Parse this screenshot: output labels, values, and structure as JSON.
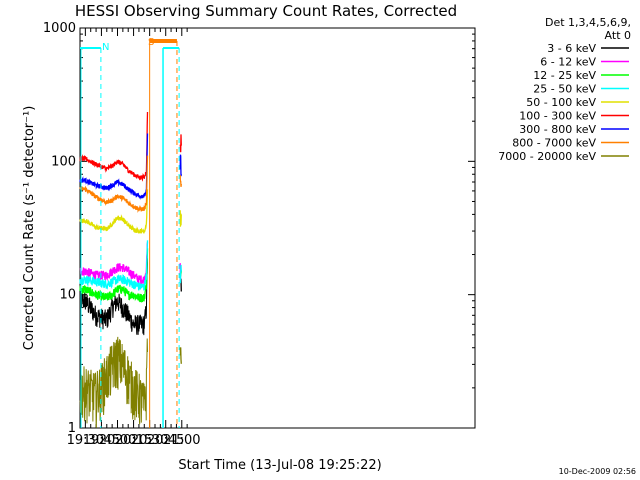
{
  "colors": {
    "axis": "#000000",
    "s_3_6": "#000000",
    "s_6_12": "#ff00ff",
    "s_12_25": "#00ff00",
    "s_25_50": "#00ffff",
    "s_50_100": "#e0e000",
    "s_100_300": "#ff0000",
    "s_300_800": "#0000ff",
    "s_800_7000": "#ff8000",
    "s_7000_20000": "#808000",
    "mark_n": "#00ffff",
    "mark_s": "#ff8000"
  },
  "chart_data": {
    "type": "line",
    "title": "HESSI Observing Summary Count Rates, Corrected",
    "xlabel": "Start Time (13-Jul-08 19:25:22)",
    "ylabel": "Corrected Count Rate (s⁻¹ detector⁻¹)",
    "y_scale": "log",
    "ylim": [
      1,
      1000
    ],
    "xlim_minutes_after_1925": [
      0,
      40
    ],
    "x_ticks": [
      "19:30",
      "19:45",
      "20:00",
      "20:15",
      "20:30",
      "20:45",
      "21:00"
    ],
    "x_tick_minutes": [
      5,
      20,
      35,
      50,
      65,
      80,
      95
    ],
    "y_ticks": [
      "1",
      "10",
      "100",
      "1000"
    ],
    "legend_header": [
      "Det 1,3,4,5,6,9,",
      "Att 0"
    ],
    "legend_position": "right",
    "x_minutes": [
      5,
      15,
      25,
      30,
      35,
      40,
      45,
      50,
      55,
      60,
      62,
      63
    ],
    "series": [
      {
        "name": "3 - 6 keV",
        "color_key": "s_3_6",
        "values": [
          9,
          7,
          6.5,
          8,
          9,
          8,
          7,
          6,
          6,
          6,
          8,
          20
        ]
      },
      {
        "name": "6 - 12 keV",
        "color_key": "s_6_12",
        "values": [
          15,
          14,
          14,
          15,
          16,
          16,
          15,
          14,
          13,
          13,
          16,
          25
        ]
      },
      {
        "name": "12 - 25 keV",
        "color_key": "s_12_25",
        "values": [
          11,
          10,
          9.5,
          10,
          11,
          11,
          10,
          10,
          9.5,
          9.5,
          12,
          22
        ]
      },
      {
        "name": "25 - 50 keV",
        "color_key": "s_25_50",
        "values": [
          13,
          12.5,
          12,
          12.5,
          13,
          13,
          12.5,
          12,
          11.5,
          11.5,
          14,
          24
        ]
      },
      {
        "name": "50 - 100 keV",
        "color_key": "s_50_100",
        "values": [
          36,
          32,
          31,
          34,
          38,
          37,
          33,
          31,
          30,
          30,
          34,
          60
        ]
      },
      {
        "name": "100 - 300 keV",
        "color_key": "s_100_300",
        "values": [
          105,
          95,
          88,
          92,
          100,
          95,
          86,
          80,
          76,
          76,
          85,
          230
        ]
      },
      {
        "name": "300 - 800 keV",
        "color_key": "s_300_800",
        "values": [
          72,
          66,
          63,
          66,
          70,
          67,
          62,
          58,
          55,
          55,
          60,
          160
        ]
      },
      {
        "name": "800 - 7000 keV",
        "color_key": "s_800_7000",
        "values": [
          62,
          54,
          49,
          51,
          55,
          53,
          49,
          46,
          44,
          44,
          48,
          110
        ]
      },
      {
        "name": "7000 - 20000 keV",
        "color_key": "s_7000_20000",
        "values": [
          2,
          1.8,
          2.5,
          3,
          3.5,
          3,
          2.5,
          2,
          1.8,
          1.5,
          2,
          6
        ]
      }
    ],
    "flags": [
      {
        "label": "N",
        "color_key": "mark_n"
      },
      {
        "label": "S",
        "color_key": "mark_s"
      }
    ],
    "footer_date": "10-Dec-2009 02:56"
  }
}
